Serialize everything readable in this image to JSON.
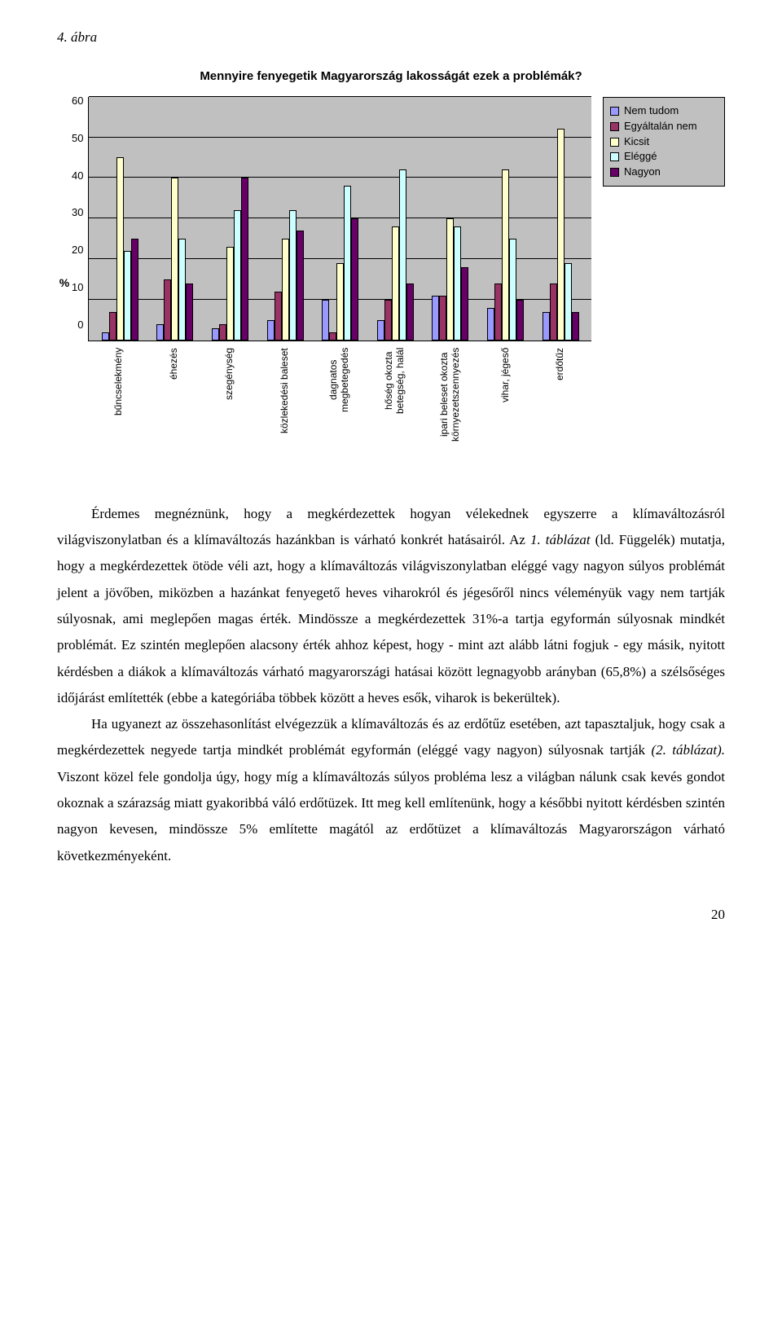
{
  "figure_label": "4. ábra",
  "chart": {
    "type": "bar",
    "title": "Mennyire fenyegetik Magyarország lakosságát ezek a problémák?",
    "y_axis_label": "%",
    "y_ticks": [
      "60",
      "50",
      "40",
      "30",
      "20",
      "10",
      "0"
    ],
    "ylim_max": 60,
    "background_color": "#c0c0c0",
    "grid_color": "#000000",
    "series": [
      {
        "name": "Nem tudom",
        "color": "#9999ff"
      },
      {
        "name": "Egyáltalán nem",
        "color": "#993366"
      },
      {
        "name": "Kicsit",
        "color": "#ffffcc"
      },
      {
        "name": "Eléggé",
        "color": "#ccffff"
      },
      {
        "name": "Nagyon",
        "color": "#660066"
      }
    ],
    "categories": [
      {
        "label": "bűncselekmény",
        "values": [
          2,
          7,
          45,
          22,
          25
        ]
      },
      {
        "label": "éhezés",
        "values": [
          4,
          15,
          40,
          25,
          14
        ]
      },
      {
        "label": "szegénység",
        "values": [
          3,
          4,
          23,
          32,
          40
        ]
      },
      {
        "label": "közlekedési baleset",
        "values": [
          5,
          12,
          25,
          32,
          27
        ]
      },
      {
        "label": "dagnatos\nmegbetegedés",
        "values": [
          10,
          2,
          19,
          38,
          30
        ]
      },
      {
        "label": "hőség okozta\nbetegség, halál",
        "values": [
          5,
          10,
          28,
          42,
          14
        ]
      },
      {
        "label": "ipari beleset okozta\nkörnyezetszennyezés",
        "values": [
          11,
          11,
          30,
          28,
          18
        ]
      },
      {
        "label": "vihar, jégeső",
        "values": [
          8,
          14,
          42,
          25,
          10
        ]
      },
      {
        "label": "erdőtűz",
        "values": [
          7,
          14,
          52,
          19,
          7
        ]
      }
    ]
  },
  "paragraphs": {
    "p1": "Érdemes megnéznünk, hogy a megkérdezettek hogyan vélekednek egyszerre a klímaváltozásról világviszonylatban és a klímaváltozás hazánkban is várható konkrét hatásairól. Az ",
    "p1_italic": "1. táblázat",
    "p1b": " (ld. Függelék) mutatja, hogy a megkérdezettek ötöde véli azt, hogy a klímaváltozás világviszonylatban eléggé vagy nagyon súlyos problémát jelent a jövőben, miközben a hazánkat fenyegető heves viharokról és jégesőről nincs véleményük vagy nem tartják súlyosnak, ami meglepően magas érték. Mindössze a megkérdezettek 31%-a tartja egyformán súlyosnak mindkét problémát. Ez szintén meglepően alacsony érték ahhoz képest, hogy - mint azt alább látni fogjuk - egy másik, nyitott kérdésben a diákok a klímaváltozás várható magyarországi hatásai között legnagyobb arányban (65,8%) a szélsőséges időjárást említették (ebbe a kategóriába többek között a heves esők, viharok is bekerültek).",
    "p2": "Ha ugyanezt az összehasonlítást elvégezzük a klímaváltozás és az erdőtűz esetében, azt tapasztaljuk, hogy csak a megkérdezettek negyede tartja mindkét problémát egyformán (eléggé vagy nagyon) súlyosnak tartják ",
    "p2_italic": "(2. táblázat).",
    "p2b": " Viszont közel fele gondolja úgy, hogy míg a klímaváltozás súlyos probléma lesz a világban nálunk csak kevés gondot okoznak a szárazság miatt gyakoribbá váló erdőtüzek. Itt meg kell említenünk, hogy a későbbi nyitott kérdésben szintén nagyon kevesen, mindössze 5% említette magától az erdőtüzet a klímaváltozás Magyarországon várható következményeként."
  },
  "page_number": "20"
}
